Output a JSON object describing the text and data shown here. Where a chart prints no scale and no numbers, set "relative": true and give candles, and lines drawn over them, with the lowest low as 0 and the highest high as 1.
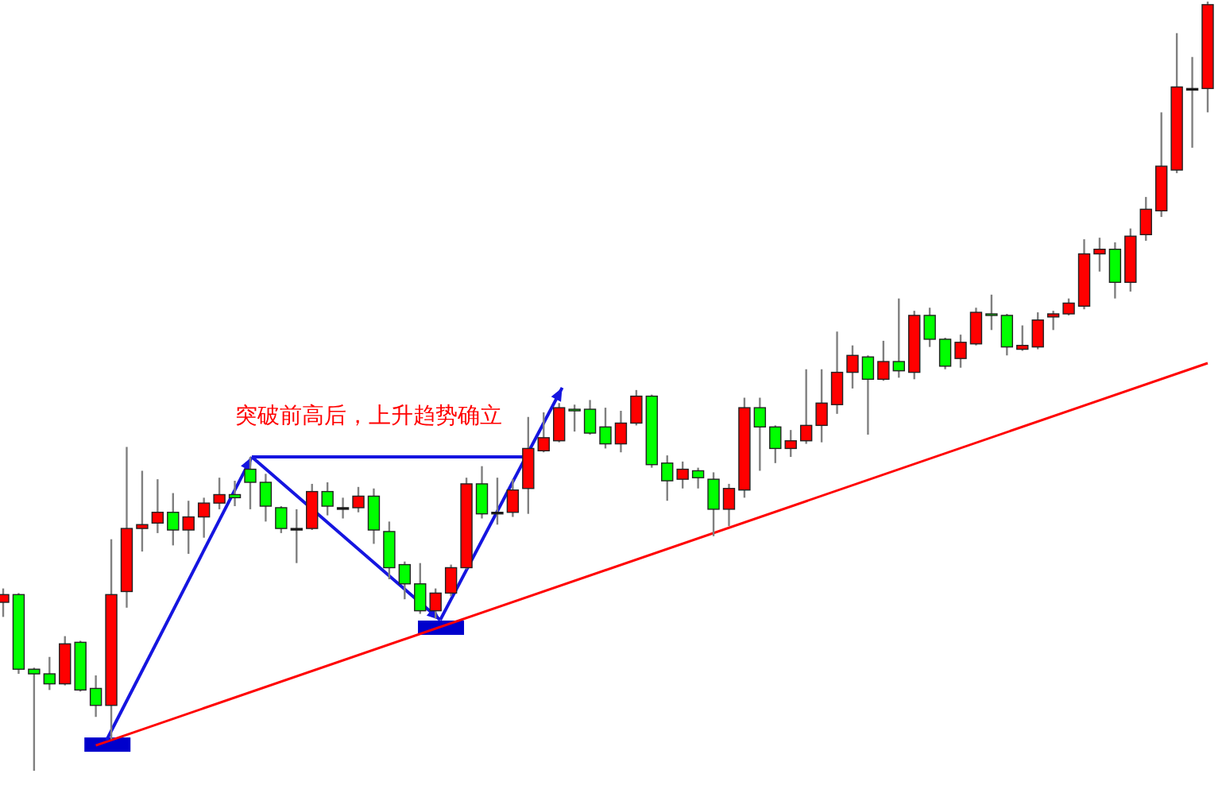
{
  "chart_data": {
    "type": "candlestick",
    "relative": true,
    "categories": [
      null,
      null,
      null,
      null,
      null,
      null,
      null,
      null,
      null,
      null,
      null,
      null,
      null,
      null,
      null,
      null,
      null,
      null,
      null,
      null,
      null,
      null,
      null,
      null,
      null,
      null,
      null,
      null,
      null,
      null,
      null,
      null,
      null,
      null,
      null,
      null,
      null,
      null,
      null,
      null,
      null,
      null,
      null,
      null,
      null,
      null,
      null,
      null,
      null,
      null,
      null,
      null,
      null,
      null,
      null,
      null,
      null,
      null,
      null,
      null,
      null,
      null,
      null,
      null,
      null,
      null,
      null,
      null,
      null,
      null,
      null,
      null,
      null,
      null,
      null,
      null,
      null,
      null,
      null
    ],
    "ohlc": [
      [
        0.219,
        0.237,
        0.2,
        0.229
      ],
      [
        0.229,
        0.231,
        0.126,
        0.132
      ],
      [
        0.132,
        0.134,
        0,
        0.126
      ],
      [
        0.126,
        0.148,
        0.105,
        0.113
      ],
      [
        0.113,
        0.175,
        0.111,
        0.165
      ],
      [
        0.167,
        0.169,
        0.103,
        0.105
      ],
      [
        0.107,
        0.124,
        0.07,
        0.085
      ],
      [
        0.085,
        0.301,
        0.041,
        0.229
      ],
      [
        0.233,
        0.421,
        0.212,
        0.315
      ],
      [
        0.315,
        0.39,
        0.285,
        0.32
      ],
      [
        0.322,
        0.379,
        0.309,
        0.336
      ],
      [
        0.336,
        0.361,
        0.293,
        0.313
      ],
      [
        0.313,
        0.351,
        0.282,
        0.33
      ],
      [
        0.33,
        0.355,
        0.303,
        0.348
      ],
      [
        0.348,
        0.381,
        0.34,
        0.359
      ],
      [
        0.359,
        0.377,
        0.344,
        0.355
      ],
      [
        0.392,
        0.408,
        0.34,
        0.375
      ],
      [
        0.375,
        0.386,
        0.324,
        0.344
      ],
      [
        0.342,
        0.344,
        0.309,
        0.315
      ],
      [
        0.315,
        0.34,
        0.27,
        0.315
      ],
      [
        0.315,
        0.373,
        0.313,
        0.363
      ],
      [
        0.363,
        0.375,
        0.332,
        0.344
      ],
      [
        0.342,
        0.355,
        0.328,
        0.342
      ],
      [
        0.342,
        0.369,
        0.336,
        0.357
      ],
      [
        0.357,
        0.367,
        0.295,
        0.313
      ],
      [
        0.311,
        0.324,
        0.249,
        0.264
      ],
      [
        0.268,
        0.272,
        0.223,
        0.243
      ],
      [
        0.243,
        0.27,
        0.204,
        0.208
      ],
      [
        0.208,
        0.237,
        0.198,
        0.231
      ],
      [
        0.231,
        0.268,
        0.227,
        0.264
      ],
      [
        0.264,
        0.381,
        0.262,
        0.373
      ],
      [
        0.373,
        0.396,
        0.328,
        0.334
      ],
      [
        0.336,
        0.381,
        0.32,
        0.336
      ],
      [
        0.336,
        0.379,
        0.33,
        0.365
      ],
      [
        0.367,
        0.46,
        0.334,
        0.419
      ],
      [
        0.416,
        0.466,
        0.414,
        0.433
      ],
      [
        0.429,
        0.478,
        0.427,
        0.472
      ],
      [
        0.47,
        0.476,
        0.441,
        0.468
      ],
      [
        0.47,
        0.482,
        0.437,
        0.439
      ],
      [
        0.447,
        0.472,
        0.419,
        0.425
      ],
      [
        0.425,
        0.468,
        0.414,
        0.452
      ],
      [
        0.452,
        0.495,
        0.449,
        0.487
      ],
      [
        0.487,
        0.489,
        0.394,
        0.398
      ],
      [
        0.4,
        0.41,
        0.351,
        0.377
      ],
      [
        0.379,
        0.402,
        0.367,
        0.392
      ],
      [
        0.39,
        0.394,
        0.367,
        0.381
      ],
      [
        0.379,
        0.388,
        0.305,
        0.34
      ],
      [
        0.34,
        0.373,
        0.318,
        0.367
      ],
      [
        0.365,
        0.485,
        0.355,
        0.472
      ],
      [
        0.472,
        0.485,
        0.39,
        0.447
      ],
      [
        0.447,
        0.449,
        0.4,
        0.419
      ],
      [
        0.419,
        0.443,
        0.408,
        0.429
      ],
      [
        0.429,
        0.522,
        0.425,
        0.449
      ],
      [
        0.449,
        0.522,
        0.427,
        0.478
      ],
      [
        0.476,
        0.571,
        0.464,
        0.518
      ],
      [
        0.518,
        0.553,
        0.497,
        0.54
      ],
      [
        0.538,
        0.54,
        0.437,
        0.509
      ],
      [
        0.509,
        0.559,
        0.507,
        0.532
      ],
      [
        0.532,
        0.614,
        0.511,
        0.52
      ],
      [
        0.518,
        0.598,
        0.509,
        0.592
      ],
      [
        0.592,
        0.602,
        0.551,
        0.561
      ],
      [
        0.561,
        0.563,
        0.522,
        0.526
      ],
      [
        0.536,
        0.567,
        0.524,
        0.557
      ],
      [
        0.555,
        0.602,
        0.553,
        0.596
      ],
      [
        0.594,
        0.619,
        0.573,
        0.592
      ],
      [
        0.592,
        0.594,
        0.54,
        0.551
      ],
      [
        0.548,
        0.579,
        0.546,
        0.553
      ],
      [
        0.551,
        0.596,
        0.548,
        0.586
      ],
      [
        0.59,
        0.598,
        0.573,
        0.594
      ],
      [
        0.594,
        0.614,
        0.592,
        0.608
      ],
      [
        0.604,
        0.691,
        0.6,
        0.672
      ],
      [
        0.672,
        0.693,
        0.649,
        0.678
      ],
      [
        0.678,
        0.687,
        0.614,
        0.635
      ],
      [
        0.635,
        0.705,
        0.623,
        0.695
      ],
      [
        0.697,
        0.746,
        0.689,
        0.73
      ],
      [
        0.728,
        0.856,
        0.72,
        0.786
      ],
      [
        0.781,
        0.959,
        0.777,
        0.889
      ],
      [
        0.887,
        0.928,
        0.81,
        0.887
      ],
      [
        0.887,
        1,
        0.856,
        0.996
      ]
    ],
    "colors": [
      "#ff0000",
      "#00ff00",
      "#00ff00",
      "#00ff00",
      "#ff0000",
      "#00ff00",
      "#00ff00",
      "#ff0000",
      "#ff0000",
      "#ff0000",
      "#ff0000",
      "#00ff00",
      "#ff0000",
      "#ff0000",
      "#ff0000",
      "#00ff00",
      "#00ff00",
      "#00ff00",
      "#00ff00",
      "#000000",
      "#ff0000",
      "#00ff00",
      "#000000",
      "#ff0000",
      "#00ff00",
      "#00ff00",
      "#00ff00",
      "#00ff00",
      "#ff0000",
      "#ff0000",
      "#ff0000",
      "#00ff00",
      "#000000",
      "#ff0000",
      "#ff0000",
      "#ff0000",
      "#ff0000",
      "#00ff00",
      "#00ff00",
      "#00ff00",
      "#ff0000",
      "#ff0000",
      "#00ff00",
      "#00ff00",
      "#ff0000",
      "#00ff00",
      "#00ff00",
      "#ff0000",
      "#ff0000",
      "#00ff00",
      "#00ff00",
      "#ff0000",
      "#ff0000",
      "#ff0000",
      "#ff0000",
      "#ff0000",
      "#00ff00",
      "#ff0000",
      "#00ff00",
      "#ff0000",
      "#00ff00",
      "#00ff00",
      "#ff0000",
      "#ff0000",
      "#00ff00",
      "#00ff00",
      "#ff0000",
      "#ff0000",
      "#ff0000",
      "#ff0000",
      "#ff0000",
      "#ff0000",
      "#00ff00",
      "#ff0000",
      "#ff0000",
      "#ff0000",
      "#ff0000",
      "#000000",
      "#ff0000"
    ],
    "series": [
      {
        "type": "line",
        "color": "#ff0000",
        "values": [
          null,
          null,
          null,
          null,
          null,
          null,
          0.033,
          null,
          null,
          null,
          null,
          null,
          null,
          null,
          null,
          null,
          null,
          null,
          null,
          null,
          null,
          null,
          null,
          null,
          null,
          null,
          null,
          null,
          null,
          null,
          null,
          null,
          null,
          null,
          null,
          null,
          null,
          null,
          null,
          null,
          null,
          null,
          null,
          null,
          null,
          null,
          null,
          null,
          null,
          null,
          null,
          null,
          null,
          null,
          null,
          null,
          null,
          null,
          null,
          null,
          null,
          null,
          null,
          null,
          null,
          null,
          null,
          null,
          null,
          null,
          null,
          null,
          null,
          null,
          null,
          null,
          null,
          null,
          0.53
        ]
      }
    ],
    "annotations": [
      "突破前高后，上升趋势确立"
    ]
  }
}
